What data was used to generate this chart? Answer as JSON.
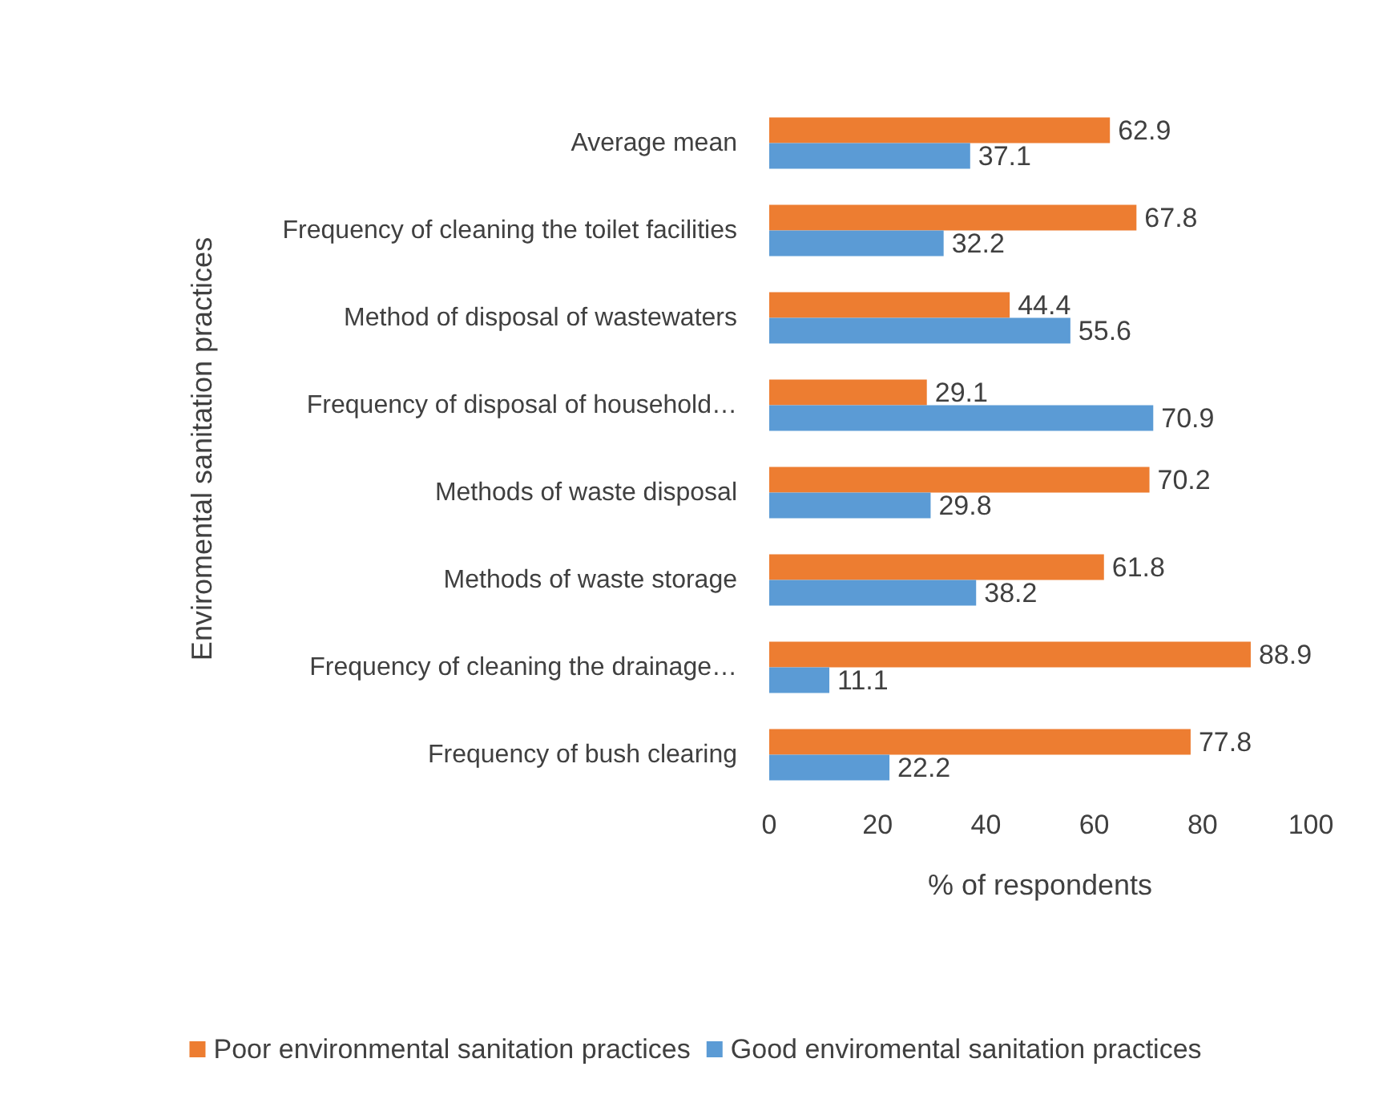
{
  "chart_data": {
    "type": "bar",
    "orientation": "horizontal",
    "xlabel": "% of respondents",
    "ylabel": "Enviromental sanitation practices",
    "categories": [
      "Average mean",
      "Frequency of cleaning the toilet facilities",
      "Method of disposal of wastewaters",
      "Frequency of disposal of household…",
      "Methods of waste disposal",
      "Methods of waste storage",
      "Frequency of cleaning the drainage…",
      "Frequency of bush clearing"
    ],
    "series": [
      {
        "name": "Poor environmental sanitation practices",
        "color": "#ed7d31",
        "values": [
          62.9,
          67.8,
          44.4,
          29.1,
          70.2,
          61.8,
          88.9,
          77.8
        ]
      },
      {
        "name": "Good enviromental sanitation practices",
        "color": "#5b9bd5",
        "values": [
          37.1,
          32.2,
          55.6,
          70.9,
          29.8,
          38.2,
          11.1,
          22.2
        ]
      }
    ],
    "xlim": [
      0,
      100
    ],
    "xticks": [
      0,
      20,
      40,
      60,
      80,
      100
    ],
    "grid": false,
    "legend": "bottom",
    "data_labels": true
  }
}
